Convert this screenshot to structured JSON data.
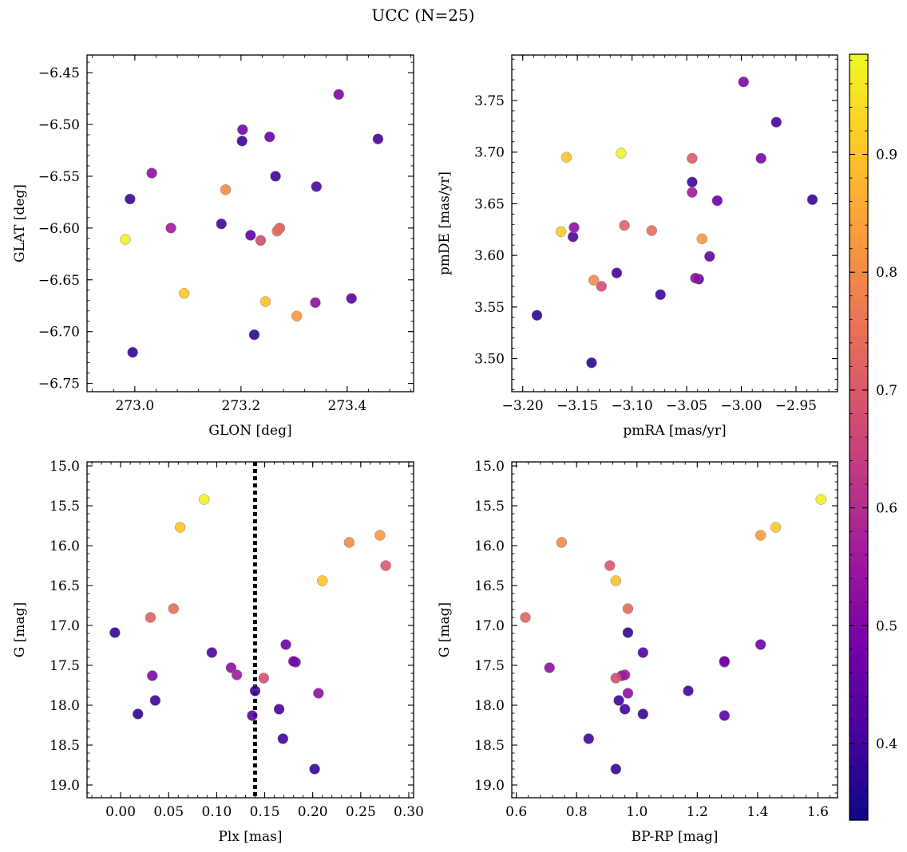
{
  "title": "UCC (N=25)",
  "colors": {
    "vline": "#000000",
    "point_edge": "#8a8a8a",
    "colormap": "plasma"
  },
  "colorbar": {
    "vmin": 0.335,
    "vmax": 0.985,
    "ticks": [
      "0.4",
      "0.5",
      "0.6",
      "0.7",
      "0.8",
      "0.9"
    ]
  },
  "members": [
    {
      "glon": 273.384,
      "glat": -6.471,
      "pmra": -2.998,
      "pmde": 3.768,
      "plx": 0.033,
      "g": 17.63,
      "bprp": 0.95,
      "p": 0.5
    },
    {
      "glon": 273.458,
      "glat": -6.514,
      "pmra": -2.968,
      "pmde": 3.729,
      "plx": 0.165,
      "g": 18.05,
      "bprp": 0.96,
      "p": 0.41
    },
    {
      "glon": 273.203,
      "glat": -6.505,
      "pmra": -2.982,
      "pmde": 3.694,
      "plx": 0.18,
      "g": 17.45,
      "bprp": 1.29,
      "p": 0.49
    },
    {
      "glon": 273.202,
      "glat": -6.516,
      "pmra": -2.935,
      "pmde": 3.654,
      "plx": 0.202,
      "g": 18.8,
      "bprp": 0.93,
      "p": 0.39
    },
    {
      "glon": 273.254,
      "glat": -6.512,
      "pmra": -3.022,
      "pmde": 3.653,
      "plx": 0.172,
      "g": 17.24,
      "bprp": 1.41,
      "p": 0.47
    },
    {
      "glon": 273.032,
      "glat": -6.547,
      "pmra": -3.153,
      "pmde": 3.627,
      "plx": 0.206,
      "g": 17.85,
      "bprp": 0.97,
      "p": 0.53
    },
    {
      "glon": 273.265,
      "glat": -6.55,
      "pmra": -3.045,
      "pmde": 3.671,
      "plx": 0.14,
      "g": 17.82,
      "bprp": 1.17,
      "p": 0.4
    },
    {
      "glon": 273.342,
      "glat": -6.56,
      "pmra": -3.154,
      "pmde": 3.618,
      "plx": 0.095,
      "g": 17.34,
      "bprp": 1.02,
      "p": 0.42
    },
    {
      "glon": 272.991,
      "glat": -6.572,
      "pmra": -3.114,
      "pmde": 3.583,
      "plx": 0.169,
      "g": 18.42,
      "bprp": 0.84,
      "p": 0.4
    },
    {
      "glon": 273.171,
      "glat": -6.563,
      "pmra": -3.135,
      "pmde": 3.576,
      "plx": 0.238,
      "g": 15.96,
      "bprp": 0.75,
      "p": 0.8
    },
    {
      "glon": 273.163,
      "glat": -6.596,
      "pmra": -3.074,
      "pmde": 3.562,
      "plx": 0.036,
      "g": 17.94,
      "bprp": 0.94,
      "p": 0.4
    },
    {
      "glon": 273.218,
      "glat": -6.607,
      "pmra": -3.029,
      "pmde": 3.599,
      "plx": 0.182,
      "g": 17.46,
      "bprp": 1.29,
      "p": 0.45
    },
    {
      "glon": 273.068,
      "glat": -6.6,
      "pmra": -3.045,
      "pmde": 3.661,
      "plx": 0.121,
      "g": 17.62,
      "bprp": 0.96,
      "p": 0.56
    },
    {
      "glon": 273.237,
      "glat": -6.612,
      "pmra": -3.128,
      "pmde": 3.57,
      "plx": 0.149,
      "g": 17.66,
      "bprp": 0.93,
      "p": 0.68
    },
    {
      "glon": 273.273,
      "glat": -6.6,
      "pmra": -3.107,
      "pmde": 3.629,
      "plx": 0.031,
      "g": 16.9,
      "bprp": 0.63,
      "p": 0.72
    },
    {
      "glon": 273.268,
      "glat": -6.603,
      "pmra": -3.082,
      "pmde": 3.624,
      "plx": 0.055,
      "g": 16.79,
      "bprp": 0.97,
      "p": 0.74
    },
    {
      "glon": 272.982,
      "glat": -6.611,
      "pmra": -3.11,
      "pmde": 3.699,
      "plx": 0.087,
      "g": 15.42,
      "bprp": 1.61,
      "p": 0.97
    },
    {
      "glon": 273.093,
      "glat": -6.663,
      "pmra": -3.165,
      "pmde": 3.623,
      "plx": 0.062,
      "g": 15.77,
      "bprp": 1.46,
      "p": 0.91
    },
    {
      "glon": 273.246,
      "glat": -6.671,
      "pmra": -3.16,
      "pmde": 3.695,
      "plx": 0.21,
      "g": 16.44,
      "bprp": 0.93,
      "p": 0.9
    },
    {
      "glon": 273.305,
      "glat": -6.685,
      "pmra": -3.036,
      "pmde": 3.616,
      "plx": 0.27,
      "g": 15.87,
      "bprp": 1.41,
      "p": 0.83
    },
    {
      "glon": 273.271,
      "glat": -6.601,
      "pmra": -3.045,
      "pmde": 3.694,
      "plx": 0.276,
      "g": 16.25,
      "bprp": 0.91,
      "p": 0.7
    },
    {
      "glon": 273.34,
      "glat": -6.672,
      "pmra": -3.042,
      "pmde": 3.578,
      "plx": 0.115,
      "g": 17.53,
      "bprp": 0.71,
      "p": 0.53
    },
    {
      "glon": 273.408,
      "glat": -6.668,
      "pmra": -3.039,
      "pmde": 3.577,
      "plx": 0.137,
      "g": 18.13,
      "bprp": 1.29,
      "p": 0.44
    },
    {
      "glon": 273.225,
      "glat": -6.703,
      "pmra": -3.187,
      "pmde": 3.542,
      "plx": -0.006,
      "g": 17.09,
      "bprp": 0.97,
      "p": 0.38
    },
    {
      "glon": 272.996,
      "glat": -6.72,
      "pmra": -3.137,
      "pmde": 3.496,
      "plx": 0.018,
      "g": 18.11,
      "bprp": 1.02,
      "p": 0.38
    }
  ],
  "chart_data": [
    {
      "type": "scatter",
      "title": "UCC (N=25)",
      "xlabel": "GLON [deg]",
      "ylabel": "GLAT [deg]",
      "xlim": [
        272.91,
        273.525
      ],
      "ylim": [
        -6.758,
        -6.433
      ],
      "xticks": [
        "273.0",
        "273.2",
        "273.4"
      ],
      "yticks": [
        "−6.45",
        "−6.50",
        "−6.55",
        "−6.60",
        "−6.65",
        "−6.70",
        "−6.75"
      ],
      "x_field": "glon",
      "y_field": "glat",
      "color_field": "p"
    },
    {
      "type": "scatter",
      "xlabel": "pmRA [mas/yr]",
      "ylabel": "pmDE [mas/yr]",
      "xlim": [
        -3.21,
        -2.912
      ],
      "ylim": [
        3.468,
        3.794
      ],
      "xticks": [
        "−3.20",
        "−3.15",
        "−3.10",
        "−3.05",
        "−3.00",
        "−2.95"
      ],
      "yticks": [
        "3.50",
        "3.55",
        "3.60",
        "3.65",
        "3.70",
        "3.75"
      ],
      "x_field": "pmra",
      "y_field": "pmde",
      "color_field": "p"
    },
    {
      "type": "scatter",
      "xlabel": "Plx [mas]",
      "ylabel": "G [mag]",
      "xlim": [
        -0.035,
        0.305
      ],
      "ylim": [
        19.16,
        14.95
      ],
      "xticks": [
        "0.00",
        "0.05",
        "0.10",
        "0.15",
        "0.20",
        "0.25",
        "0.30"
      ],
      "yticks": [
        "15.0",
        "15.5",
        "16.0",
        "16.5",
        "17.0",
        "17.5",
        "18.0",
        "18.5",
        "19.0"
      ],
      "x_field": "plx",
      "y_field": "g",
      "color_field": "p",
      "vline": 0.14
    },
    {
      "type": "scatter",
      "xlabel": "BP-RP [mag]",
      "ylabel": "G [mag]",
      "xlim": [
        0.585,
        1.665
      ],
      "ylim": [
        19.16,
        14.95
      ],
      "xticks": [
        "0.6",
        "0.8",
        "1.0",
        "1.2",
        "1.4",
        "1.6"
      ],
      "yticks": [
        "15.0",
        "15.5",
        "16.0",
        "16.5",
        "17.0",
        "17.5",
        "18.0",
        "18.5",
        "19.0"
      ],
      "x_field": "bprp",
      "y_field": "g",
      "color_field": "p"
    }
  ]
}
